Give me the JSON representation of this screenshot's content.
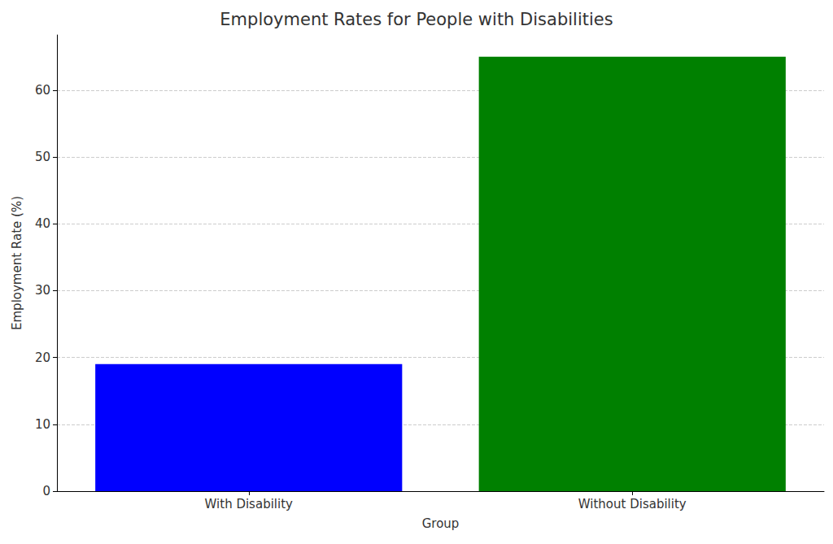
{
  "chart_data": {
    "type": "bar",
    "title": "Employment Rates for People with Disabilities",
    "x_label": "Group",
    "y_label": "Employment Rate (%)",
    "categories": [
      "With Disability",
      "Without Disability"
    ],
    "values": [
      19,
      65
    ],
    "colors": [
      "#0000ff",
      "#008000"
    ],
    "ylim": [
      0,
      68.25
    ],
    "yticks": [
      0,
      10,
      20,
      30,
      40,
      50,
      60
    ],
    "grid": true
  }
}
